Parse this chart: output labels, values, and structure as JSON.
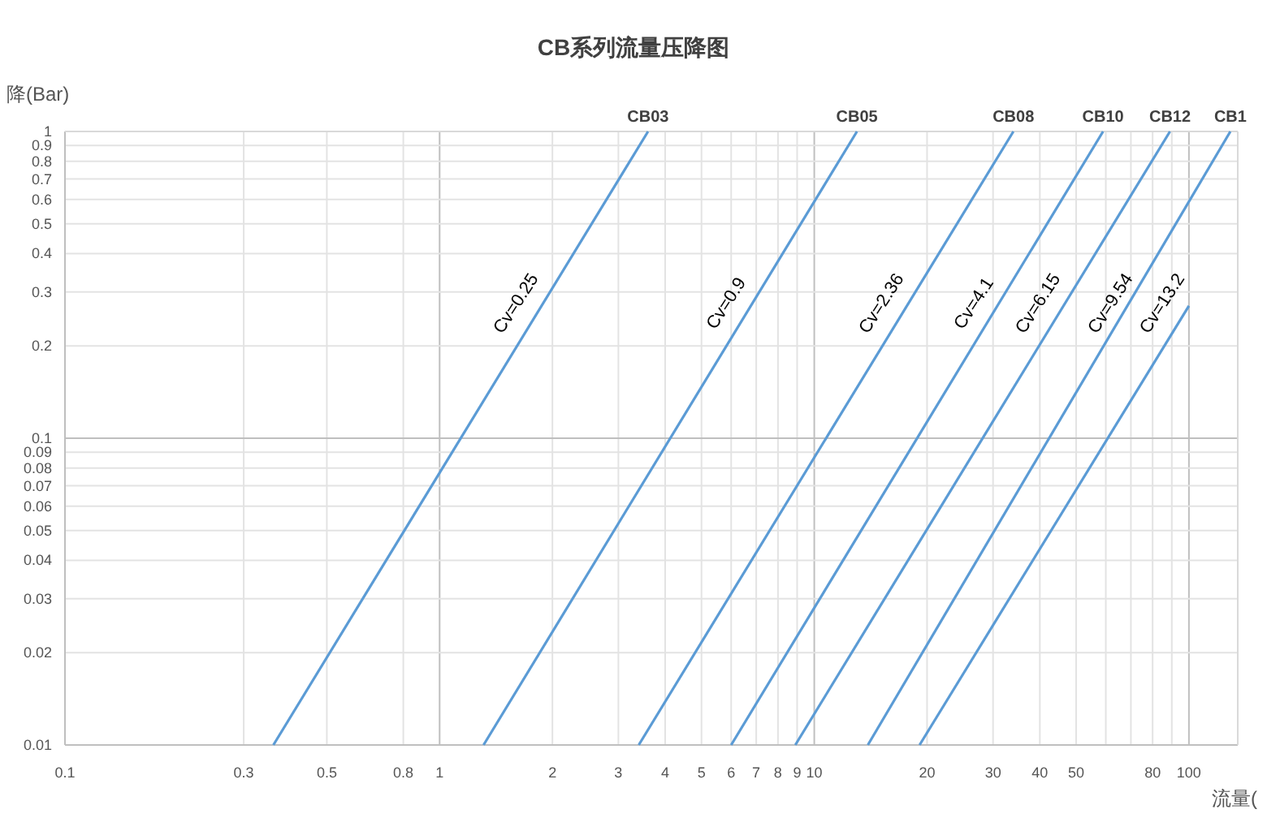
{
  "chart_data": {
    "type": "line",
    "title": "CB系列流量压降图",
    "ylabel": "降(Bar)",
    "xlabel": "流量(",
    "log": "xy",
    "xlim": [
      0.1,
      135
    ],
    "ylim": [
      0.01,
      1
    ],
    "xticks": [
      0.1,
      0.3,
      0.5,
      0.8,
      1,
      2,
      3,
      4,
      5,
      6,
      7,
      8,
      9,
      10,
      20,
      30,
      40,
      50,
      {
        "value": 60,
        "label": null
      },
      {
        "value": 70,
        "label": null
      },
      80,
      {
        "value": 90,
        "label": null
      },
      100
    ],
    "yticks": [
      0.01,
      0.02,
      0.03,
      0.04,
      0.05,
      0.06,
      0.07,
      0.08,
      0.09,
      0.1,
      0.2,
      0.3,
      0.4,
      0.5,
      0.6,
      0.7,
      0.8,
      0.9,
      1
    ],
    "grid": true,
    "marker": "none",
    "line_style": "solid",
    "series": [
      {
        "color": "#5b9bd5",
        "x": [
          0.36,
          3.6
        ],
        "values": [
          0.01,
          1
        ]
      },
      {
        "color": "#5b9bd5",
        "x": [
          1.31,
          13
        ],
        "values": [
          0.01,
          1
        ]
      },
      {
        "color": "#5b9bd5",
        "x": [
          3.4,
          34
        ],
        "values": [
          0.01,
          1
        ]
      },
      {
        "color": "#5b9bd5",
        "x": [
          6.0,
          59
        ],
        "values": [
          0.01,
          1
        ]
      },
      {
        "color": "#5b9bd5",
        "x": [
          8.9,
          89
        ],
        "values": [
          0.01,
          1
        ]
      },
      {
        "color": "#5b9bd5",
        "x": [
          13.9,
          129
        ],
        "values": [
          0.01,
          1
        ]
      },
      {
        "color": "#5b9bd5",
        "x": [
          19.1,
          100
        ],
        "values": [
          0.01,
          0.27
        ]
      }
    ],
    "annotations": [
      {
        "text": "Cv=0.25",
        "x": 1.8,
        "y": 0.25
      },
      {
        "text": "Cv=0.9",
        "x": 6.55,
        "y": 0.25
      },
      {
        "text": "Cv=2.36",
        "x": 17,
        "y": 0.25
      },
      {
        "text": "Cv=4.1",
        "x": 30,
        "y": 0.25
      },
      {
        "text": "Cv=6.15",
        "x": 44.5,
        "y": 0.25
      },
      {
        "text": "Cv=9.54",
        "x": 69.5,
        "y": 0.25
      },
      {
        "text": "Cv=13.2",
        "x": 95.5,
        "y": 0.25
      },
      {
        "text": "CB03",
        "x": 3.6,
        "y": 1
      },
      {
        "text": "CB05",
        "x": 13,
        "y": 1
      },
      {
        "text": "CB08",
        "x": 34,
        "y": 1
      },
      {
        "text": "CB10",
        "x": 59,
        "y": 1
      },
      {
        "text": "CB12",
        "x": 89,
        "y": 1
      },
      {
        "text": "CB1",
        "x": 129,
        "y": 1
      }
    ]
  }
}
